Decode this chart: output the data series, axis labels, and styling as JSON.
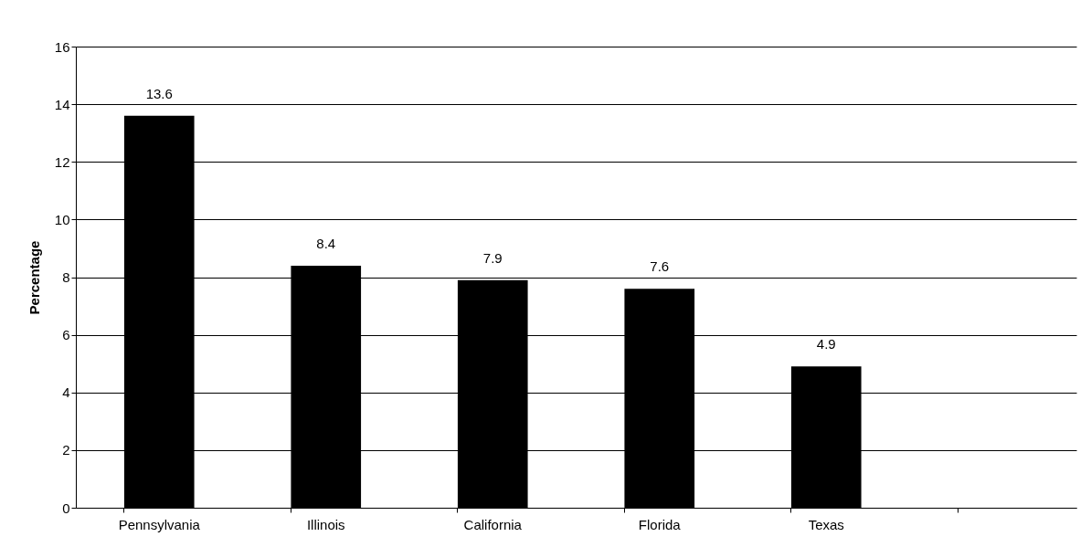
{
  "chart_data": {
    "type": "bar",
    "ylabel": "Percentage",
    "categories": [
      "Pennsylvania",
      "Illinois",
      "California",
      "Florida",
      "Texas",
      null
    ],
    "values": [
      13.6,
      8.4,
      7.9,
      7.6,
      4.9,
      null
    ],
    "color": "#000000",
    "ylim": [
      0,
      16
    ],
    "yticks": [
      0,
      2,
      4,
      6,
      8,
      10,
      12,
      14,
      16
    ],
    "grid": "y",
    "data_labels": true
  }
}
